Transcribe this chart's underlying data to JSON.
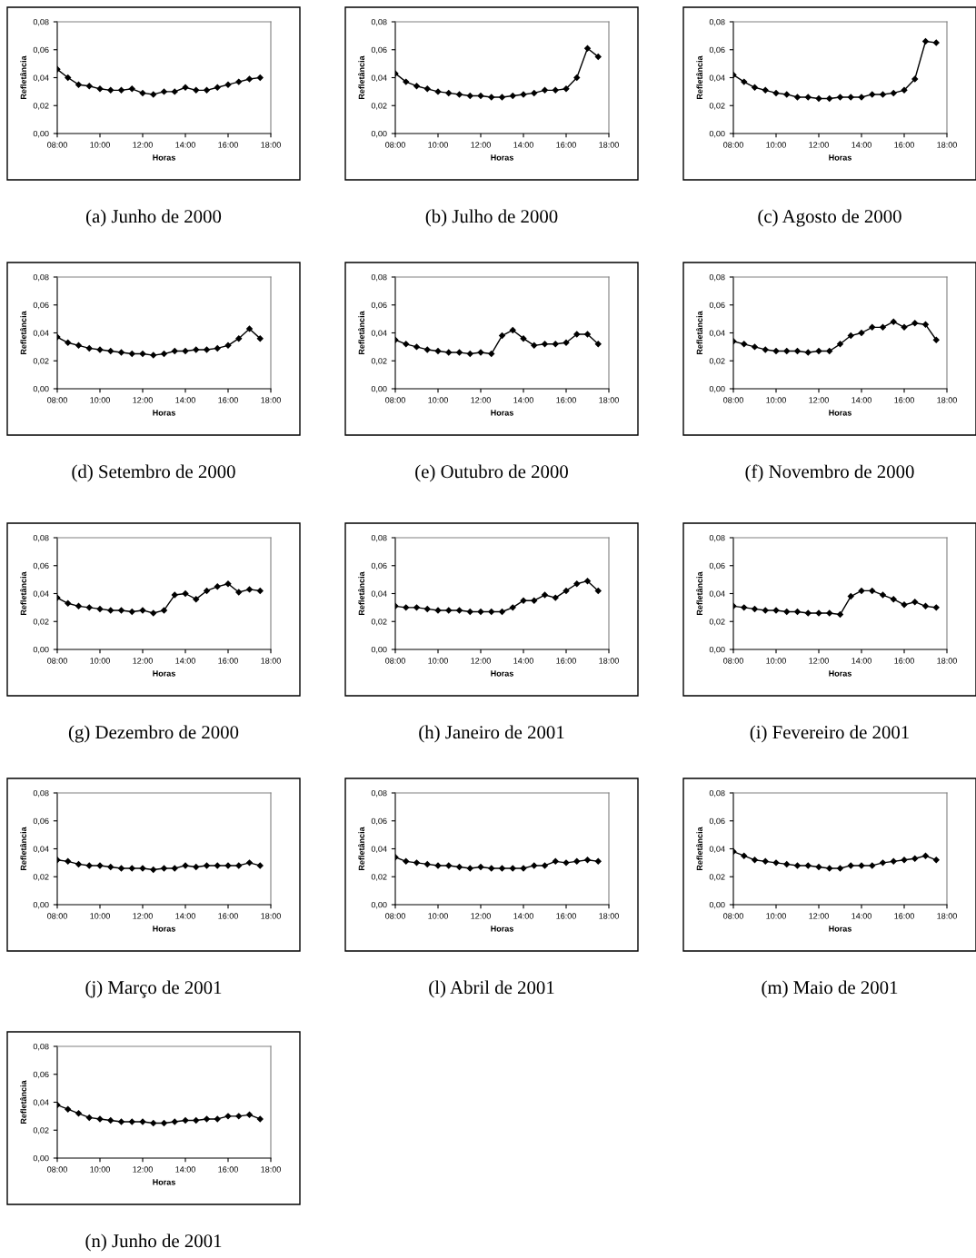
{
  "chart_data": [
    {
      "type": "line",
      "title": "(a) Junho de 2000",
      "xlabel": "Horas",
      "ylabel": "Refletância",
      "x": [
        8,
        8.5,
        9,
        9.5,
        10,
        10.5,
        11,
        11.5,
        12,
        12.5,
        13,
        13.5,
        14,
        14.5,
        15,
        15.5,
        16,
        16.5,
        17,
        17.5
      ],
      "values": [
        0.046,
        0.04,
        0.035,
        0.034,
        0.032,
        0.031,
        0.031,
        0.032,
        0.029,
        0.028,
        0.03,
        0.03,
        0.033,
        0.031,
        0.031,
        0.033,
        0.035,
        0.037,
        0.039,
        0.04
      ],
      "color": "#000000",
      "marker": "diamond",
      "xlim": [
        8,
        18
      ],
      "xticks": [
        {
          "value": 8,
          "label": "08:00"
        },
        {
          "value": 10,
          "label": "10:00"
        },
        {
          "value": 12,
          "label": "12:00"
        },
        {
          "value": 14,
          "label": "14:00"
        },
        {
          "value": 16,
          "label": "16:00"
        },
        {
          "value": 18,
          "label": "18:00"
        }
      ],
      "ylim": [
        0,
        0.08
      ],
      "yticks": [
        {
          "value": 0,
          "label": "0,00"
        },
        {
          "value": 0.02,
          "label": "0,02"
        },
        {
          "value": 0.04,
          "label": "0,04"
        },
        {
          "value": 0.06,
          "label": "0,06"
        },
        {
          "value": 0.08,
          "label": "0,08"
        }
      ],
      "grid": false
    },
    {
      "type": "line",
      "title": "(b) Julho de 2000",
      "xlabel": "Horas",
      "ylabel": "Refletância",
      "x": [
        8,
        8.5,
        9,
        9.5,
        10,
        10.5,
        11,
        11.5,
        12,
        12.5,
        13,
        13.5,
        14,
        14.5,
        15,
        15.5,
        16,
        16.5,
        17,
        17.5
      ],
      "values": [
        0.043,
        0.037,
        0.034,
        0.032,
        0.03,
        0.029,
        0.028,
        0.027,
        0.027,
        0.026,
        0.026,
        0.027,
        0.028,
        0.029,
        0.031,
        0.031,
        0.032,
        0.04,
        0.061,
        0.055
      ],
      "color": "#000000",
      "marker": "diamond",
      "xlim": [
        8,
        18
      ],
      "xticks": [
        {
          "value": 8,
          "label": "08:00"
        },
        {
          "value": 10,
          "label": "10:00"
        },
        {
          "value": 12,
          "label": "12:00"
        },
        {
          "value": 14,
          "label": "14:00"
        },
        {
          "value": 16,
          "label": "16:00"
        },
        {
          "value": 18,
          "label": "18:00"
        }
      ],
      "ylim": [
        0,
        0.08
      ],
      "yticks": [
        {
          "value": 0,
          "label": "0,00"
        },
        {
          "value": 0.02,
          "label": "0,02"
        },
        {
          "value": 0.04,
          "label": "0,04"
        },
        {
          "value": 0.06,
          "label": "0,06"
        },
        {
          "value": 0.08,
          "label": "0,08"
        }
      ],
      "grid": false
    },
    {
      "type": "line",
      "title": "(c) Agosto de 2000",
      "xlabel": "Horas",
      "ylabel": "Refletância",
      "x": [
        8,
        8.5,
        9,
        9.5,
        10,
        10.5,
        11,
        11.5,
        12,
        12.5,
        13,
        13.5,
        14,
        14.5,
        15,
        15.5,
        16,
        16.5,
        17,
        17.5
      ],
      "values": [
        0.042,
        0.037,
        0.033,
        0.031,
        0.029,
        0.028,
        0.026,
        0.026,
        0.025,
        0.025,
        0.026,
        0.026,
        0.026,
        0.028,
        0.028,
        0.029,
        0.031,
        0.039,
        0.066,
        0.065
      ],
      "color": "#000000",
      "marker": "diamond",
      "xlim": [
        8,
        18
      ],
      "xticks": [
        {
          "value": 8,
          "label": "08:00"
        },
        {
          "value": 10,
          "label": "10:00"
        },
        {
          "value": 12,
          "label": "12:00"
        },
        {
          "value": 14,
          "label": "14:00"
        },
        {
          "value": 16,
          "label": "16:00"
        },
        {
          "value": 18,
          "label": "18:00"
        }
      ],
      "ylim": [
        0,
        0.08
      ],
      "yticks": [
        {
          "value": 0,
          "label": "0,00"
        },
        {
          "value": 0.02,
          "label": "0,02"
        },
        {
          "value": 0.04,
          "label": "0,04"
        },
        {
          "value": 0.06,
          "label": "0,06"
        },
        {
          "value": 0.08,
          "label": "0,08"
        }
      ],
      "grid": false
    },
    {
      "type": "line",
      "title": "(d) Setembro de 2000",
      "xlabel": "Horas",
      "ylabel": "Refletância",
      "x": [
        8,
        8.5,
        9,
        9.5,
        10,
        10.5,
        11,
        11.5,
        12,
        12.5,
        13,
        13.5,
        14,
        14.5,
        15,
        15.5,
        16,
        16.5,
        17,
        17.5
      ],
      "values": [
        0.037,
        0.033,
        0.031,
        0.029,
        0.028,
        0.027,
        0.026,
        0.025,
        0.025,
        0.024,
        0.025,
        0.027,
        0.027,
        0.028,
        0.028,
        0.029,
        0.031,
        0.036,
        0.043,
        0.036
      ],
      "color": "#000000",
      "marker": "diamond",
      "xlim": [
        8,
        18
      ],
      "xticks": [
        {
          "value": 8,
          "label": "08:00"
        },
        {
          "value": 10,
          "label": "10:00"
        },
        {
          "value": 12,
          "label": "12:00"
        },
        {
          "value": 14,
          "label": "14:00"
        },
        {
          "value": 16,
          "label": "16:00"
        },
        {
          "value": 18,
          "label": "18:00"
        }
      ],
      "ylim": [
        0,
        0.08
      ],
      "yticks": [
        {
          "value": 0,
          "label": "0,00"
        },
        {
          "value": 0.02,
          "label": "0,02"
        },
        {
          "value": 0.04,
          "label": "0,04"
        },
        {
          "value": 0.06,
          "label": "0,06"
        },
        {
          "value": 0.08,
          "label": "0,08"
        }
      ],
      "grid": false
    },
    {
      "type": "line",
      "title": "(e) Outubro de 2000",
      "xlabel": "Horas",
      "ylabel": "Refletância",
      "x": [
        8,
        8.5,
        9,
        9.5,
        10,
        10.5,
        11,
        11.5,
        12,
        12.5,
        13,
        13.5,
        14,
        14.5,
        15,
        15.5,
        16,
        16.5,
        17,
        17.5
      ],
      "values": [
        0.035,
        0.032,
        0.03,
        0.028,
        0.027,
        0.026,
        0.026,
        0.025,
        0.026,
        0.025,
        0.038,
        0.042,
        0.036,
        0.031,
        0.032,
        0.032,
        0.033,
        0.039,
        0.039,
        0.032
      ],
      "color": "#000000",
      "marker": "diamond",
      "xlim": [
        8,
        18
      ],
      "xticks": [
        {
          "value": 8,
          "label": "08:00"
        },
        {
          "value": 10,
          "label": "10:00"
        },
        {
          "value": 12,
          "label": "12:00"
        },
        {
          "value": 14,
          "label": "14:00"
        },
        {
          "value": 16,
          "label": "16:00"
        },
        {
          "value": 18,
          "label": "18:00"
        }
      ],
      "ylim": [
        0,
        0.08
      ],
      "yticks": [
        {
          "value": 0,
          "label": "0,00"
        },
        {
          "value": 0.02,
          "label": "0,02"
        },
        {
          "value": 0.04,
          "label": "0,04"
        },
        {
          "value": 0.06,
          "label": "0,06"
        },
        {
          "value": 0.08,
          "label": "0,08"
        }
      ],
      "grid": false
    },
    {
      "type": "line",
      "title": "(f) Novembro de 2000",
      "xlabel": "Horas",
      "ylabel": "Refletância",
      "x": [
        8,
        8.5,
        9,
        9.5,
        10,
        10.5,
        11,
        11.5,
        12,
        12.5,
        13,
        13.5,
        14,
        14.5,
        15,
        15.5,
        16,
        16.5,
        17,
        17.5
      ],
      "values": [
        0.034,
        0.032,
        0.03,
        0.028,
        0.027,
        0.027,
        0.027,
        0.026,
        0.027,
        0.027,
        0.032,
        0.038,
        0.04,
        0.044,
        0.044,
        0.048,
        0.044,
        0.047,
        0.046,
        0.035
      ],
      "color": "#000000",
      "marker": "diamond",
      "xlim": [
        8,
        18
      ],
      "xticks": [
        {
          "value": 8,
          "label": "08:00"
        },
        {
          "value": 10,
          "label": "10:00"
        },
        {
          "value": 12,
          "label": "12:00"
        },
        {
          "value": 14,
          "label": "14:00"
        },
        {
          "value": 16,
          "label": "16:00"
        },
        {
          "value": 18,
          "label": "18:00"
        }
      ],
      "ylim": [
        0,
        0.08
      ],
      "yticks": [
        {
          "value": 0,
          "label": "0,00"
        },
        {
          "value": 0.02,
          "label": "0,02"
        },
        {
          "value": 0.04,
          "label": "0,04"
        },
        {
          "value": 0.06,
          "label": "0,06"
        },
        {
          "value": 0.08,
          "label": "0,08"
        }
      ],
      "grid": false
    },
    {
      "type": "line",
      "title": "(g) Dezembro de 2000",
      "xlabel": "Horas",
      "ylabel": "Refletância",
      "x": [
        8,
        8.5,
        9,
        9.5,
        10,
        10.5,
        11,
        11.5,
        12,
        12.5,
        13,
        13.5,
        14,
        14.5,
        15,
        15.5,
        16,
        16.5,
        17,
        17.5
      ],
      "values": [
        0.037,
        0.033,
        0.031,
        0.03,
        0.029,
        0.028,
        0.028,
        0.027,
        0.028,
        0.026,
        0.028,
        0.039,
        0.04,
        0.036,
        0.042,
        0.045,
        0.047,
        0.041,
        0.043,
        0.042
      ],
      "color": "#000000",
      "marker": "diamond",
      "xlim": [
        8,
        18
      ],
      "xticks": [
        {
          "value": 8,
          "label": "08:00"
        },
        {
          "value": 10,
          "label": "10:00"
        },
        {
          "value": 12,
          "label": "12:00"
        },
        {
          "value": 14,
          "label": "14:00"
        },
        {
          "value": 16,
          "label": "16:00"
        },
        {
          "value": 18,
          "label": "18:00"
        }
      ],
      "ylim": [
        0,
        0.08
      ],
      "yticks": [
        {
          "value": 0,
          "label": "0,00"
        },
        {
          "value": 0.02,
          "label": "0,02"
        },
        {
          "value": 0.04,
          "label": "0,04"
        },
        {
          "value": 0.06,
          "label": "0,06"
        },
        {
          "value": 0.08,
          "label": "0,08"
        }
      ],
      "grid": false
    },
    {
      "type": "line",
      "title": "(h) Janeiro de 2001",
      "xlabel": "Horas",
      "ylabel": "Refletância",
      "x": [
        8,
        8.5,
        9,
        9.5,
        10,
        10.5,
        11,
        11.5,
        12,
        12.5,
        13,
        13.5,
        14,
        14.5,
        15,
        15.5,
        16,
        16.5,
        17,
        17.5
      ],
      "values": [
        0.031,
        0.03,
        0.03,
        0.029,
        0.028,
        0.028,
        0.028,
        0.027,
        0.027,
        0.027,
        0.027,
        0.03,
        0.035,
        0.035,
        0.039,
        0.037,
        0.042,
        0.047,
        0.049,
        0.042
      ],
      "color": "#000000",
      "marker": "diamond",
      "xlim": [
        8,
        18
      ],
      "xticks": [
        {
          "value": 8,
          "label": "08:00"
        },
        {
          "value": 10,
          "label": "10:00"
        },
        {
          "value": 12,
          "label": "12:00"
        },
        {
          "value": 14,
          "label": "14:00"
        },
        {
          "value": 16,
          "label": "16:00"
        },
        {
          "value": 18,
          "label": "18:00"
        }
      ],
      "ylim": [
        0,
        0.08
      ],
      "yticks": [
        {
          "value": 0,
          "label": "0,00"
        },
        {
          "value": 0.02,
          "label": "0,02"
        },
        {
          "value": 0.04,
          "label": "0,04"
        },
        {
          "value": 0.06,
          "label": "0,06"
        },
        {
          "value": 0.08,
          "label": "0,08"
        }
      ],
      "grid": false
    },
    {
      "type": "line",
      "title": "(i) Fevereiro de 2001",
      "xlabel": "Horas",
      "ylabel": "Refletância",
      "x": [
        8,
        8.5,
        9,
        9.5,
        10,
        10.5,
        11,
        11.5,
        12,
        12.5,
        13,
        13.5,
        14,
        14.5,
        15,
        15.5,
        16,
        16.5,
        17,
        17.5
      ],
      "values": [
        0.031,
        0.03,
        0.029,
        0.028,
        0.028,
        0.027,
        0.027,
        0.026,
        0.026,
        0.026,
        0.025,
        0.038,
        0.042,
        0.042,
        0.039,
        0.036,
        0.032,
        0.034,
        0.031,
        0.03
      ],
      "color": "#000000",
      "marker": "diamond",
      "xlim": [
        8,
        18
      ],
      "xticks": [
        {
          "value": 8,
          "label": "08:00"
        },
        {
          "value": 10,
          "label": "10:00"
        },
        {
          "value": 12,
          "label": "12:00"
        },
        {
          "value": 14,
          "label": "14:00"
        },
        {
          "value": 16,
          "label": "16:00"
        },
        {
          "value": 18,
          "label": "18:00"
        }
      ],
      "ylim": [
        0,
        0.08
      ],
      "yticks": [
        {
          "value": 0,
          "label": "0,00"
        },
        {
          "value": 0.02,
          "label": "0,02"
        },
        {
          "value": 0.04,
          "label": "0,04"
        },
        {
          "value": 0.06,
          "label": "0,06"
        },
        {
          "value": 0.08,
          "label": "0,08"
        }
      ],
      "grid": false
    },
    {
      "type": "line",
      "title": "(j) Março de 2001",
      "xlabel": "Horas",
      "ylabel": "Refletância",
      "x": [
        8,
        8.5,
        9,
        9.5,
        10,
        10.5,
        11,
        11.5,
        12,
        12.5,
        13,
        13.5,
        14,
        14.5,
        15,
        15.5,
        16,
        16.5,
        17,
        17.5
      ],
      "values": [
        0.032,
        0.031,
        0.029,
        0.028,
        0.028,
        0.027,
        0.026,
        0.026,
        0.026,
        0.025,
        0.026,
        0.026,
        0.028,
        0.027,
        0.028,
        0.028,
        0.028,
        0.028,
        0.03,
        0.028
      ],
      "color": "#000000",
      "marker": "diamond",
      "xlim": [
        8,
        18
      ],
      "xticks": [
        {
          "value": 8,
          "label": "08:00"
        },
        {
          "value": 10,
          "label": "10:00"
        },
        {
          "value": 12,
          "label": "12:00"
        },
        {
          "value": 14,
          "label": "14:00"
        },
        {
          "value": 16,
          "label": "16:00"
        },
        {
          "value": 18,
          "label": "18:00"
        }
      ],
      "ylim": [
        0,
        0.08
      ],
      "yticks": [
        {
          "value": 0,
          "label": "0,00"
        },
        {
          "value": 0.02,
          "label": "0,02"
        },
        {
          "value": 0.04,
          "label": "0,04"
        },
        {
          "value": 0.06,
          "label": "0,06"
        },
        {
          "value": 0.08,
          "label": "0,08"
        }
      ],
      "grid": false
    },
    {
      "type": "line",
      "title": "(l) Abril de 2001",
      "xlabel": "Horas",
      "ylabel": "Refletância",
      "x": [
        8,
        8.5,
        9,
        9.5,
        10,
        10.5,
        11,
        11.5,
        12,
        12.5,
        13,
        13.5,
        14,
        14.5,
        15,
        15.5,
        16,
        16.5,
        17,
        17.5
      ],
      "values": [
        0.034,
        0.031,
        0.03,
        0.029,
        0.028,
        0.028,
        0.027,
        0.026,
        0.027,
        0.026,
        0.026,
        0.026,
        0.026,
        0.028,
        0.028,
        0.031,
        0.03,
        0.031,
        0.032,
        0.031
      ],
      "color": "#000000",
      "marker": "diamond",
      "xlim": [
        8,
        18
      ],
      "xticks": [
        {
          "value": 8,
          "label": "08:00"
        },
        {
          "value": 10,
          "label": "10:00"
        },
        {
          "value": 12,
          "label": "12:00"
        },
        {
          "value": 14,
          "label": "14:00"
        },
        {
          "value": 16,
          "label": "16:00"
        },
        {
          "value": 18,
          "label": "18:00"
        }
      ],
      "ylim": [
        0,
        0.08
      ],
      "yticks": [
        {
          "value": 0,
          "label": "0,00"
        },
        {
          "value": 0.02,
          "label": "0,02"
        },
        {
          "value": 0.04,
          "label": "0,04"
        },
        {
          "value": 0.06,
          "label": "0,06"
        },
        {
          "value": 0.08,
          "label": "0,08"
        }
      ],
      "grid": false
    },
    {
      "type": "line",
      "title": "(m) Maio de 2001",
      "xlabel": "Horas",
      "ylabel": "Refletância",
      "x": [
        8,
        8.5,
        9,
        9.5,
        10,
        10.5,
        11,
        11.5,
        12,
        12.5,
        13,
        13.5,
        14,
        14.5,
        15,
        15.5,
        16,
        16.5,
        17,
        17.5
      ],
      "values": [
        0.038,
        0.035,
        0.032,
        0.031,
        0.03,
        0.029,
        0.028,
        0.028,
        0.027,
        0.026,
        0.026,
        0.028,
        0.028,
        0.028,
        0.03,
        0.031,
        0.032,
        0.033,
        0.035,
        0.032
      ],
      "color": "#000000",
      "marker": "diamond",
      "xlim": [
        8,
        18
      ],
      "xticks": [
        {
          "value": 8,
          "label": "08:00"
        },
        {
          "value": 10,
          "label": "10:00"
        },
        {
          "value": 12,
          "label": "12:00"
        },
        {
          "value": 14,
          "label": "14:00"
        },
        {
          "value": 16,
          "label": "16:00"
        },
        {
          "value": 18,
          "label": "18:00"
        }
      ],
      "ylim": [
        0,
        0.08
      ],
      "yticks": [
        {
          "value": 0,
          "label": "0,00"
        },
        {
          "value": 0.02,
          "label": "0,02"
        },
        {
          "value": 0.04,
          "label": "0,04"
        },
        {
          "value": 0.06,
          "label": "0,06"
        },
        {
          "value": 0.08,
          "label": "0,08"
        }
      ],
      "grid": false
    },
    {
      "type": "line",
      "title": "(n) Junho de 2001",
      "xlabel": "Horas",
      "ylabel": "Refletância",
      "x": [
        8,
        8.5,
        9,
        9.5,
        10,
        10.5,
        11,
        11.5,
        12,
        12.5,
        13,
        13.5,
        14,
        14.5,
        15,
        15.5,
        16,
        16.5,
        17,
        17.5
      ],
      "values": [
        0.038,
        0.035,
        0.032,
        0.029,
        0.028,
        0.027,
        0.026,
        0.026,
        0.026,
        0.025,
        0.025,
        0.026,
        0.027,
        0.027,
        0.028,
        0.028,
        0.03,
        0.03,
        0.031,
        0.028
      ],
      "color": "#000000",
      "marker": "diamond",
      "xlim": [
        8,
        18
      ],
      "xticks": [
        {
          "value": 8,
          "label": "08:00"
        },
        {
          "value": 10,
          "label": "10:00"
        },
        {
          "value": 12,
          "label": "12:00"
        },
        {
          "value": 14,
          "label": "14:00"
        },
        {
          "value": 16,
          "label": "16:00"
        },
        {
          "value": 18,
          "label": "18:00"
        }
      ],
      "ylim": [
        0,
        0.08
      ],
      "yticks": [
        {
          "value": 0,
          "label": "0,00"
        },
        {
          "value": 0.02,
          "label": "0,02"
        },
        {
          "value": 0.04,
          "label": "0,04"
        },
        {
          "value": 0.06,
          "label": "0,06"
        },
        {
          "value": 0.08,
          "label": "0,08"
        }
      ],
      "grid": false
    }
  ]
}
